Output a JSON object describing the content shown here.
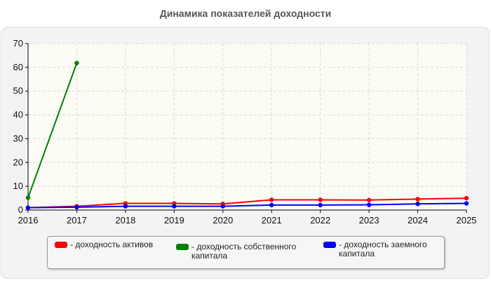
{
  "chart_data": {
    "type": "line",
    "title": "Динамика показателей доходности",
    "x": [
      "2016",
      "2017",
      "2018",
      "2019",
      "2020",
      "2021",
      "2022",
      "2023",
      "2024",
      "2025"
    ],
    "ylim": [
      0,
      70
    ],
    "yticks": [
      "0",
      "10",
      "20",
      "30",
      "40",
      "50",
      "60",
      "70"
    ],
    "grid": true,
    "legend_position": "bottom",
    "series": [
      {
        "name": "- доходность активов",
        "color": "#ff0000",
        "values": [
          1.0,
          1.6,
          2.8,
          2.8,
          2.6,
          4.3,
          4.3,
          4.2,
          4.6,
          5.0
        ]
      },
      {
        "name": "- доходность собственного\nкапитала",
        "color": "#008000",
        "values": [
          5.2,
          61.8,
          null,
          null,
          null,
          null,
          null,
          null,
          null,
          null
        ]
      },
      {
        "name": "- доходность заемного\nкапитала",
        "color": "#0000ff",
        "values": [
          1.0,
          1.2,
          1.6,
          1.6,
          1.6,
          2.1,
          2.1,
          2.2,
          2.6,
          2.8
        ]
      }
    ]
  }
}
